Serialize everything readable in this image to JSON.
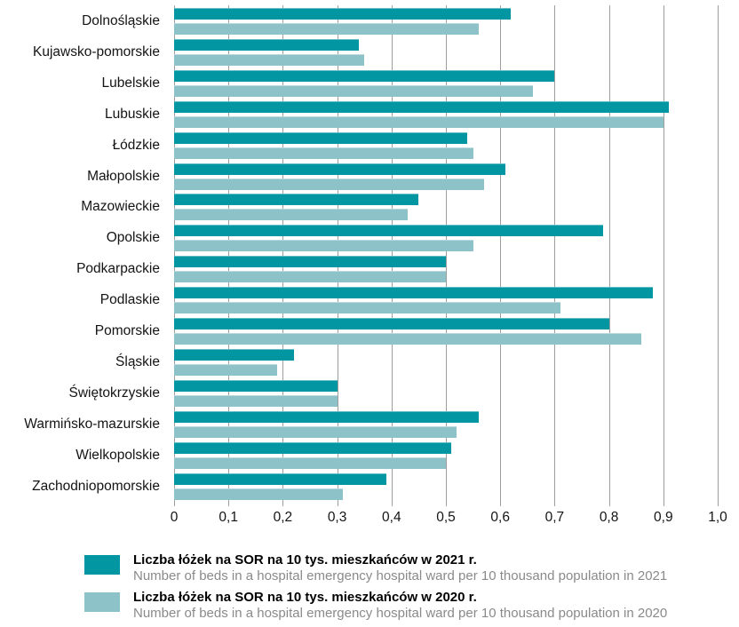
{
  "chart_data": {
    "type": "bar",
    "orientation": "horizontal",
    "title": "",
    "xlabel": "",
    "ylabel": "",
    "xlim": [
      0,
      1.0
    ],
    "x_ticks": [
      0,
      0.1,
      0.2,
      0.3,
      0.4,
      0.5,
      0.6,
      0.7,
      0.8,
      0.9,
      1.0
    ],
    "x_tick_labels": [
      "0",
      "0,1",
      "0,2",
      "0,3",
      "0,4",
      "0,5",
      "0,6",
      "0,7",
      "0,8",
      "0,9",
      "1,0"
    ],
    "grid": "vertical",
    "legend_position": "bottom",
    "categories": [
      "Dolnośląskie",
      "Kujawsko-pomorskie",
      "Lubelskie",
      "Lubuskie",
      "Łódzkie",
      "Małopolskie",
      "Mazowieckie",
      "Opolskie",
      "Podkarpackie",
      "Podlaskie",
      "Pomorskie",
      "Śląskie",
      "Świętokrzyskie",
      "Warmińsko-mazurskie",
      "Wielkopolskie",
      "Zachodniopomorskie"
    ],
    "series": [
      {
        "name": "Liczba łóżek na SOR na 10 tys. mieszkańców w 2021 r.",
        "name_en": "Number of beds in a hospital emergency hospital ward per 10 thousand population in 2021",
        "color": "#0295a2",
        "values": [
          0.62,
          0.34,
          0.7,
          0.91,
          0.54,
          0.61,
          0.45,
          0.79,
          0.5,
          0.88,
          0.8,
          0.22,
          0.3,
          0.56,
          0.51,
          0.39
        ]
      },
      {
        "name": "Liczba łóżek na SOR na 10 tys. mieszkańców w 2020 r.",
        "name_en": "Number of beds in a hospital emergency hospital ward per 10 thousand population in 2020",
        "color": "#8ec2c9",
        "values": [
          0.56,
          0.35,
          0.66,
          0.9,
          0.55,
          0.57,
          0.43,
          0.55,
          0.5,
          0.71,
          0.86,
          0.19,
          0.3,
          0.52,
          0.5,
          0.31
        ]
      }
    ]
  },
  "colors": {
    "series_2021": "#0295a2",
    "series_2020": "#8ec2c9",
    "gridline": "#9e9e9e",
    "axis_text": "#141414",
    "legend_secondary_text": "#8a8a8a",
    "background": "#ffffff"
  }
}
